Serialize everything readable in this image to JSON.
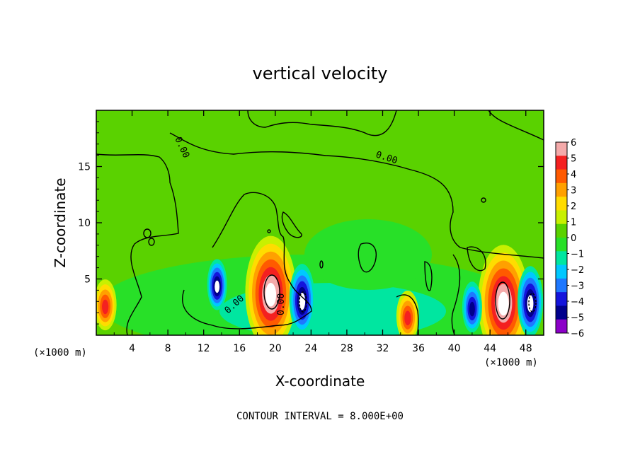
{
  "chart_data": {
    "type": "heatmap",
    "title": "vertical velocity",
    "xlabel": "X-coordinate",
    "ylabel": "Z-coordinate",
    "x_unit_label": "(×1000 m)",
    "y_unit_label": "(×1000 m)",
    "xlim": [
      0,
      50
    ],
    "ylim": [
      0,
      20
    ],
    "x_ticks": [
      "4",
      "8",
      "12",
      "16",
      "20",
      "24",
      "28",
      "32",
      "36",
      "40",
      "44",
      "48"
    ],
    "y_ticks": [
      "5",
      "10",
      "15"
    ],
    "colorbar": {
      "labels": [
        "6",
        "5",
        "4",
        "3",
        "2",
        "1",
        "0",
        "−1",
        "−2",
        "−3",
        "−4",
        "−5",
        "−6"
      ],
      "range": [
        -6,
        6
      ],
      "colors": [
        "#f4aaaa",
        "#f42020",
        "#ff5a00",
        "#ffa000",
        "#ffdc00",
        "#c8f000",
        "#5ad200",
        "#28e028",
        "#00e6a0",
        "#00c8ff",
        "#1e78ff",
        "#1414dc",
        "#00008c",
        "#8c00c8"
      ]
    },
    "contour_labels": [
      "0.00",
      "0.00",
      "0.00",
      "0.00"
    ],
    "contour_interval_text": "CONTOUR INTERVAL = 8.000E+00",
    "features": [
      {
        "kind": "updraft",
        "x": 1.0,
        "z": 2.7,
        "peak": 5
      },
      {
        "kind": "updraft",
        "x": 19.5,
        "z": 3.8,
        "peak": 8
      },
      {
        "kind": "updraft",
        "x": 45.5,
        "z": 3.0,
        "peak": 8
      },
      {
        "kind": "updraft",
        "x": 34.8,
        "z": 1.7,
        "peak": 5
      },
      {
        "kind": "downdraft",
        "x": 13.5,
        "z": 4.5,
        "peak": -6
      },
      {
        "kind": "downdraft",
        "x": 23.0,
        "z": 3.2,
        "peak": -8
      },
      {
        "kind": "downdraft",
        "x": 48.5,
        "z": 3.0,
        "peak": -7
      },
      {
        "kind": "downdraft",
        "x": 42.0,
        "z": 2.5,
        "peak": -5
      }
    ]
  }
}
